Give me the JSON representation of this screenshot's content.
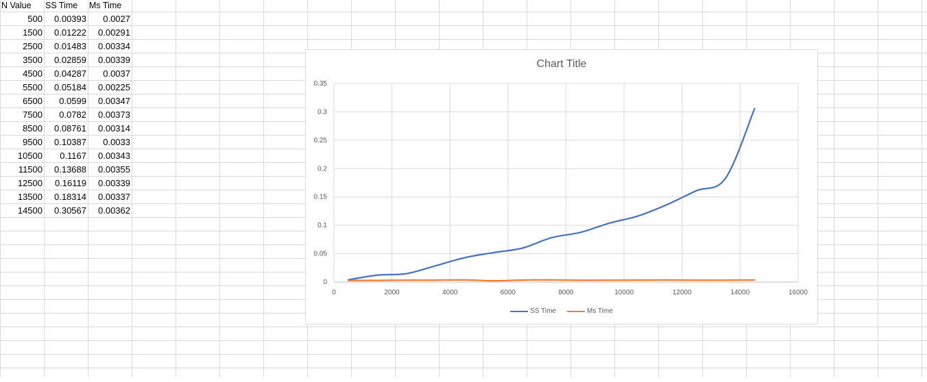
{
  "sheet": {
    "headers": [
      "N Value",
      "SS Time",
      "Ms Time"
    ],
    "rows": [
      [
        "500",
        "0.00393",
        "0.0027"
      ],
      [
        "1500",
        "0.01222",
        "0.00291"
      ],
      [
        "2500",
        "0.01483",
        "0.00334"
      ],
      [
        "3500",
        "0.02859",
        "0.00339"
      ],
      [
        "4500",
        "0.04287",
        "0.0037"
      ],
      [
        "5500",
        "0.05184",
        "0.00225"
      ],
      [
        "6500",
        "0.0599",
        "0.00347"
      ],
      [
        "7500",
        "0.0782",
        "0.00373"
      ],
      [
        "8500",
        "0.08761",
        "0.00314"
      ],
      [
        "9500",
        "0.10387",
        "0.0033"
      ],
      [
        "10500",
        "0.1167",
        "0.00343"
      ],
      [
        "11500",
        "0.13688",
        "0.00355"
      ],
      [
        "12500",
        "0.16119",
        "0.00339"
      ],
      [
        "13500",
        "0.18314",
        "0.00337"
      ],
      [
        "14500",
        "0.30567",
        "0.00362"
      ]
    ]
  },
  "chart_data": {
    "type": "line",
    "title": "Chart Title",
    "x": [
      500,
      1500,
      2500,
      3500,
      4500,
      5500,
      6500,
      7500,
      8500,
      9500,
      10500,
      11500,
      12500,
      13500,
      14500
    ],
    "series": [
      {
        "name": "SS Time",
        "color": "#4472C4",
        "values": [
          0.00393,
          0.01222,
          0.01483,
          0.02859,
          0.04287,
          0.05184,
          0.0599,
          0.0782,
          0.08761,
          0.10387,
          0.1167,
          0.13688,
          0.16119,
          0.18314,
          0.30567
        ]
      },
      {
        "name": "Ms Time",
        "color": "#ED7D31",
        "values": [
          0.0027,
          0.00291,
          0.00334,
          0.00339,
          0.0037,
          0.00225,
          0.00347,
          0.00373,
          0.00314,
          0.0033,
          0.00343,
          0.00355,
          0.00339,
          0.00337,
          0.00362
        ]
      }
    ],
    "xlim": [
      0,
      16000
    ],
    "ylim": [
      0,
      0.35
    ],
    "x_ticks": [
      "0",
      "2000",
      "4000",
      "6000",
      "8000",
      "10000",
      "12000",
      "14000",
      "16000"
    ],
    "y_ticks": [
      "0",
      "0.05",
      "0.1",
      "0.15",
      "0.2",
      "0.25",
      "0.3",
      "0.35"
    ],
    "grid": true,
    "smooth": true,
    "legend_position": "bottom"
  }
}
